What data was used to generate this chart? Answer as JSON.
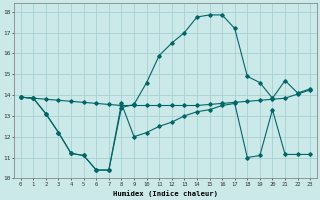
{
  "xlabel": "Humidex (Indice chaleur)",
  "bg_color": "#cce9e9",
  "line_color": "#006666",
  "grid_color": "#a8d0d0",
  "xlim": [
    -0.5,
    23.5
  ],
  "ylim": [
    10,
    18.4
  ],
  "xticks": [
    0,
    1,
    2,
    3,
    4,
    5,
    6,
    7,
    8,
    9,
    10,
    11,
    12,
    13,
    14,
    15,
    16,
    17,
    18,
    19,
    20,
    21,
    22,
    23
  ],
  "yticks": [
    10,
    11,
    12,
    13,
    14,
    15,
    16,
    17,
    18
  ],
  "series1_x": [
    0,
    1,
    2,
    3,
    4,
    5,
    6,
    7,
    8,
    9,
    10,
    11,
    12,
    13,
    14,
    15,
    16,
    17,
    18,
    19,
    20,
    21,
    22,
    23
  ],
  "series1_y": [
    13.9,
    13.85,
    13.8,
    13.75,
    13.7,
    13.65,
    13.6,
    13.55,
    13.5,
    13.5,
    13.5,
    13.5,
    13.5,
    13.5,
    13.5,
    13.55,
    13.6,
    13.65,
    13.7,
    13.75,
    13.8,
    13.85,
    14.05,
    14.25
  ],
  "series2_x": [
    0,
    1,
    2,
    3,
    4,
    5,
    6,
    7,
    8,
    9,
    10,
    11,
    12,
    13,
    14,
    15,
    16,
    17,
    18,
    19,
    20,
    21,
    22,
    23
  ],
  "series2_y": [
    13.9,
    13.85,
    13.1,
    12.2,
    11.2,
    11.1,
    10.4,
    10.4,
    13.6,
    12.0,
    12.2,
    12.5,
    12.7,
    13.0,
    13.2,
    13.3,
    13.5,
    13.6,
    11.0,
    11.1,
    13.3,
    11.15,
    11.15,
    11.15
  ],
  "series3_x": [
    0,
    1,
    2,
    3,
    4,
    5,
    6,
    7,
    8,
    9,
    10,
    11,
    12,
    13,
    14,
    15,
    16,
    17,
    18,
    19,
    20,
    21,
    22,
    23
  ],
  "series3_y": [
    13.9,
    13.85,
    13.1,
    12.2,
    11.2,
    11.1,
    10.4,
    10.4,
    13.4,
    13.55,
    14.6,
    15.9,
    16.5,
    17.0,
    17.75,
    17.85,
    17.85,
    17.2,
    14.9,
    14.6,
    13.85,
    14.7,
    14.1,
    14.3
  ]
}
